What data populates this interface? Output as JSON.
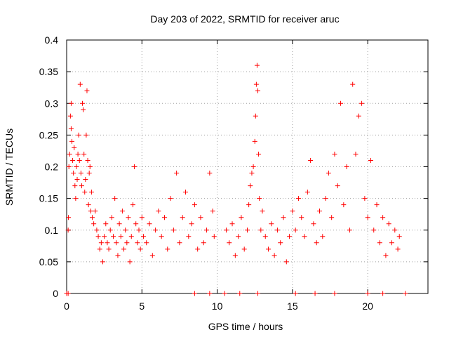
{
  "chart_data": {
    "type": "scatter",
    "title": "Day 203 of 2022, SRMTID for receiver aruc",
    "xlabel": "GPS time / hours",
    "ylabel": "SRMTID / TECUs",
    "xlim": [
      0,
      24
    ],
    "ylim": [
      0,
      0.4
    ],
    "xticks": [
      0,
      5,
      10,
      15,
      20
    ],
    "yticks": [
      0,
      0.05,
      0.1,
      0.15,
      0.2,
      0.25,
      0.3,
      0.35,
      0.4
    ],
    "xtick_labels": [
      "0",
      "5",
      "10",
      "15",
      "20"
    ],
    "ytick_labels": [
      "0",
      "0.05",
      "0.1",
      "0.15",
      "0.2",
      "0.25",
      "0.3",
      "0.35",
      "0.4"
    ],
    "grid": true,
    "marker": "plus",
    "color": "#ff0000",
    "series": [
      {
        "name": "SRMTID",
        "points": [
          [
            0.0,
            0.0
          ],
          [
            0.1,
            0.1
          ],
          [
            0.12,
            0.12
          ],
          [
            0.15,
            0.2
          ],
          [
            0.2,
            0.22
          ],
          [
            0.25,
            0.28
          ],
          [
            0.3,
            0.3
          ],
          [
            0.3,
            0.26
          ],
          [
            0.35,
            0.24
          ],
          [
            0.4,
            0.21
          ],
          [
            0.45,
            0.19
          ],
          [
            0.5,
            0.23
          ],
          [
            0.55,
            0.17
          ],
          [
            0.6,
            0.15
          ],
          [
            0.65,
            0.2
          ],
          [
            0.7,
            0.18
          ],
          [
            0.75,
            0.22
          ],
          [
            0.8,
            0.25
          ],
          [
            0.85,
            0.21
          ],
          [
            0.9,
            0.33
          ],
          [
            0.95,
            0.19
          ],
          [
            1.0,
            0.17
          ],
          [
            1.05,
            0.3
          ],
          [
            1.1,
            0.29
          ],
          [
            1.15,
            0.22
          ],
          [
            1.2,
            0.16
          ],
          [
            1.25,
            0.18
          ],
          [
            1.3,
            0.25
          ],
          [
            1.35,
            0.32
          ],
          [
            1.4,
            0.21
          ],
          [
            1.45,
            0.14
          ],
          [
            1.5,
            0.19
          ],
          [
            1.55,
            0.2
          ],
          [
            1.6,
            0.13
          ],
          [
            1.65,
            0.16
          ],
          [
            1.7,
            0.12
          ],
          [
            1.8,
            0.11
          ],
          [
            1.9,
            0.13
          ],
          [
            2.0,
            0.1
          ],
          [
            2.1,
            0.09
          ],
          [
            2.2,
            0.07
          ],
          [
            2.3,
            0.08
          ],
          [
            2.4,
            0.05
          ],
          [
            2.5,
            0.09
          ],
          [
            2.6,
            0.11
          ],
          [
            2.7,
            0.08
          ],
          [
            2.8,
            0.07
          ],
          [
            2.9,
            0.1
          ],
          [
            3.0,
            0.12
          ],
          [
            3.1,
            0.09
          ],
          [
            3.2,
            0.15
          ],
          [
            3.3,
            0.08
          ],
          [
            3.4,
            0.06
          ],
          [
            3.5,
            0.11
          ],
          [
            3.6,
            0.09
          ],
          [
            3.7,
            0.13
          ],
          [
            3.8,
            0.07
          ],
          [
            3.9,
            0.1
          ],
          [
            4.0,
            0.08
          ],
          [
            4.1,
            0.12
          ],
          [
            4.2,
            0.05
          ],
          [
            4.3,
            0.09
          ],
          [
            4.4,
            0.14
          ],
          [
            4.5,
            0.2
          ],
          [
            4.6,
            0.11
          ],
          [
            4.7,
            0.08
          ],
          [
            4.8,
            0.1
          ],
          [
            4.9,
            0.07
          ],
          [
            5.0,
            0.12
          ],
          [
            5.1,
            0.09
          ],
          [
            5.3,
            0.08
          ],
          [
            5.5,
            0.11
          ],
          [
            5.7,
            0.06
          ],
          [
            5.9,
            0.1
          ],
          [
            6.1,
            0.13
          ],
          [
            6.3,
            0.09
          ],
          [
            6.5,
            0.12
          ],
          [
            6.7,
            0.07
          ],
          [
            6.9,
            0.15
          ],
          [
            7.1,
            0.1
          ],
          [
            7.3,
            0.19
          ],
          [
            7.5,
            0.08
          ],
          [
            7.7,
            0.12
          ],
          [
            7.9,
            0.16
          ],
          [
            8.1,
            0.09
          ],
          [
            8.3,
            0.11
          ],
          [
            8.5,
            0.14
          ],
          [
            8.7,
            0.07
          ],
          [
            8.9,
            0.12
          ],
          [
            9.1,
            0.08
          ],
          [
            9.3,
            0.1
          ],
          [
            9.5,
            0.19
          ],
          [
            9.7,
            0.13
          ],
          [
            9.8,
            0.09
          ],
          [
            10.6,
            0.1
          ],
          [
            10.8,
            0.08
          ],
          [
            11.0,
            0.11
          ],
          [
            11.2,
            0.06
          ],
          [
            11.4,
            0.09
          ],
          [
            11.6,
            0.12
          ],
          [
            11.8,
            0.07
          ],
          [
            12.0,
            0.1
          ],
          [
            12.1,
            0.14
          ],
          [
            12.2,
            0.17
          ],
          [
            12.3,
            0.19
          ],
          [
            12.4,
            0.2
          ],
          [
            12.5,
            0.24
          ],
          [
            12.55,
            0.28
          ],
          [
            12.6,
            0.33
          ],
          [
            12.65,
            0.36
          ],
          [
            12.7,
            0.32
          ],
          [
            12.75,
            0.22
          ],
          [
            12.8,
            0.15
          ],
          [
            12.9,
            0.1
          ],
          [
            13.0,
            0.13
          ],
          [
            13.2,
            0.09
          ],
          [
            13.4,
            0.07
          ],
          [
            13.6,
            0.11
          ],
          [
            13.8,
            0.06
          ],
          [
            14.0,
            0.1
          ],
          [
            14.2,
            0.08
          ],
          [
            14.4,
            0.12
          ],
          [
            14.6,
            0.05
          ],
          [
            14.8,
            0.09
          ],
          [
            15.0,
            0.13
          ],
          [
            15.2,
            0.1
          ],
          [
            15.4,
            0.15
          ],
          [
            15.6,
            0.12
          ],
          [
            15.8,
            0.09
          ],
          [
            16.0,
            0.16
          ],
          [
            16.2,
            0.21
          ],
          [
            16.4,
            0.11
          ],
          [
            16.6,
            0.08
          ],
          [
            16.8,
            0.13
          ],
          [
            17.0,
            0.09
          ],
          [
            17.2,
            0.15
          ],
          [
            17.4,
            0.19
          ],
          [
            17.6,
            0.12
          ],
          [
            17.8,
            0.22
          ],
          [
            18.0,
            0.17
          ],
          [
            18.2,
            0.3
          ],
          [
            18.4,
            0.14
          ],
          [
            18.6,
            0.2
          ],
          [
            18.8,
            0.1
          ],
          [
            19.0,
            0.33
          ],
          [
            19.2,
            0.22
          ],
          [
            19.4,
            0.28
          ],
          [
            19.6,
            0.3
          ],
          [
            19.8,
            0.15
          ],
          [
            20.0,
            0.12
          ],
          [
            20.2,
            0.21
          ],
          [
            20.4,
            0.1
          ],
          [
            20.6,
            0.14
          ],
          [
            20.8,
            0.08
          ],
          [
            21.0,
            0.12
          ],
          [
            21.2,
            0.06
          ],
          [
            21.4,
            0.11
          ],
          [
            21.6,
            0.08
          ],
          [
            21.8,
            0.1
          ],
          [
            22.0,
            0.07
          ],
          [
            22.1,
            0.09
          ],
          [
            0.1,
            0.0
          ],
          [
            8.5,
            0.0
          ],
          [
            9.5,
            0.0
          ],
          [
            10.5,
            0.0
          ],
          [
            11.5,
            0.0
          ],
          [
            12.7,
            0.0
          ],
          [
            15.2,
            0.0
          ],
          [
            16.5,
            0.0
          ],
          [
            17.8,
            0.0
          ],
          [
            20.0,
            0.0
          ],
          [
            21.0,
            0.0
          ],
          [
            22.5,
            0.0
          ]
        ]
      }
    ]
  }
}
